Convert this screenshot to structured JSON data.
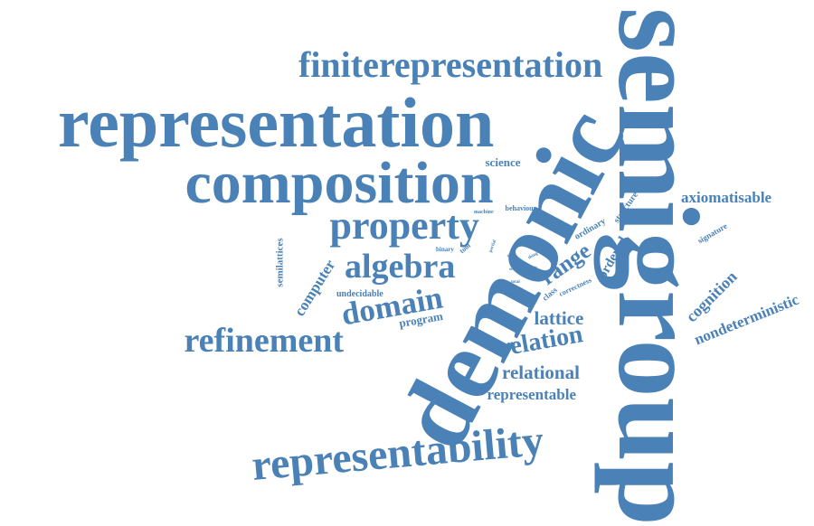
{
  "color": "#4a81b6",
  "words": [
    {
      "text": "semigroup"
    },
    {
      "text": "demonic"
    },
    {
      "text": "representation"
    },
    {
      "text": "composition"
    },
    {
      "text": "representability"
    },
    {
      "text": "finiterepresentation"
    },
    {
      "text": "property"
    },
    {
      "text": "refinement"
    },
    {
      "text": "algebra"
    },
    {
      "text": "domain"
    },
    {
      "text": "relation"
    },
    {
      "text": "relational"
    },
    {
      "text": "range"
    },
    {
      "text": "lattice"
    },
    {
      "text": "axiomatisable"
    },
    {
      "text": "representable"
    },
    {
      "text": "cognition"
    },
    {
      "text": "nondeterministic"
    },
    {
      "text": "computer"
    },
    {
      "text": "ordered"
    },
    {
      "text": "science"
    },
    {
      "text": "program"
    },
    {
      "text": "semilattices"
    },
    {
      "text": "ordinary"
    },
    {
      "text": "structure"
    },
    {
      "text": "undecidable"
    },
    {
      "text": "signature"
    },
    {
      "text": "class"
    },
    {
      "text": "correctness"
    },
    {
      "text": "behaviour"
    },
    {
      "text": "machine"
    },
    {
      "text": "binary"
    },
    {
      "text": "tool"
    },
    {
      "text": "problem"
    },
    {
      "text": "partial"
    },
    {
      "text": "result"
    },
    {
      "text": "order"
    },
    {
      "text": "total"
    },
    {
      "text": "thing"
    },
    {
      "text": "set"
    }
  ]
}
